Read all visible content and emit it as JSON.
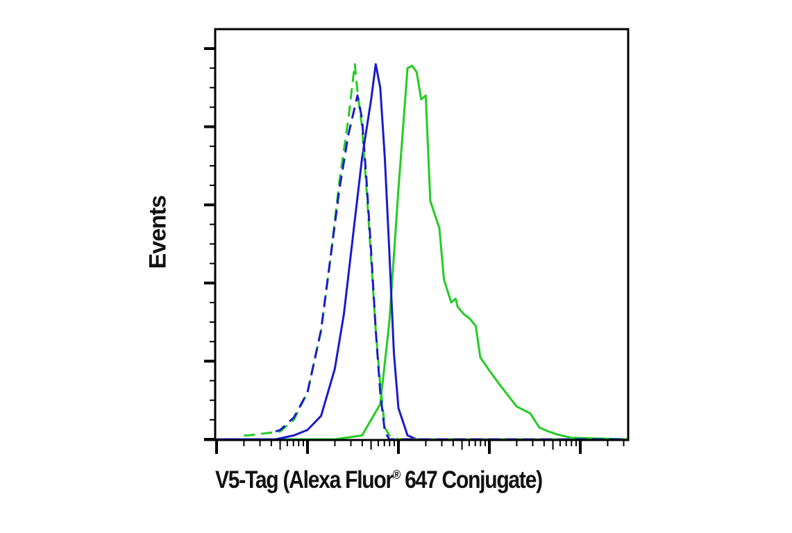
{
  "chart_data": {
    "type": "line",
    "title": "",
    "xlabel": "V5-Tag (Alexa Fluor® 647 Conjugate)",
    "ylabel": "Events",
    "x_scale": "log",
    "x_tick_labels": [],
    "y_tick_labels": [],
    "x_major_ticks_decades": [
      0,
      1,
      2,
      3,
      4
    ],
    "xlim_decades": [
      0,
      4.52
    ],
    "ylim": [
      0,
      5
    ],
    "grid": false,
    "legend": null,
    "series": [
      {
        "name": "green-solid",
        "color": "#22cc22",
        "style": "solid",
        "x": [
          0,
          1.3,
          1.6,
          1.8,
          1.9,
          2.0,
          2.1,
          2.15,
          2.2,
          2.25,
          2.3,
          2.35,
          2.45,
          2.5,
          2.58,
          2.63,
          2.65,
          2.72,
          2.78,
          2.85,
          2.9,
          3.0,
          3.1,
          3.2,
          3.3,
          3.45,
          3.55,
          3.65,
          3.75,
          3.9,
          4.52
        ],
        "y": [
          0,
          0,
          0.05,
          0.45,
          1.5,
          3.2,
          4.75,
          4.78,
          4.7,
          4.35,
          4.4,
          3.05,
          2.7,
          2.05,
          1.75,
          1.8,
          1.7,
          1.6,
          1.55,
          1.45,
          1.05,
          0.88,
          0.72,
          0.57,
          0.42,
          0.33,
          0.15,
          0.1,
          0.06,
          0.02,
          0
        ]
      },
      {
        "name": "blue-solid",
        "color": "#1a1acc",
        "style": "solid",
        "x": [
          0,
          0.65,
          0.85,
          1.0,
          1.15,
          1.3,
          1.4,
          1.5,
          1.6,
          1.7,
          1.75,
          1.8,
          1.85,
          1.9,
          1.95,
          2.0,
          2.1,
          2.2,
          4.52
        ],
        "y": [
          0,
          0,
          0.05,
          0.12,
          0.3,
          0.9,
          1.6,
          2.6,
          3.6,
          4.35,
          4.8,
          4.5,
          3.6,
          2.4,
          1.1,
          0.4,
          0.05,
          0,
          0
        ]
      },
      {
        "name": "green-dashed",
        "color": "#22cc22",
        "style": "dashed",
        "x": [
          0.3,
          0.35,
          0.7,
          0.85,
          1.0,
          1.15,
          1.25,
          1.35,
          1.45,
          1.52,
          1.55,
          1.6,
          1.65,
          1.7,
          1.75,
          1.8,
          1.85,
          1.9,
          2.0,
          4.52
        ],
        "y": [
          0.05,
          0.05,
          0.1,
          0.25,
          0.6,
          1.4,
          2.3,
          3.3,
          4.1,
          4.8,
          4.45,
          4.0,
          3.2,
          2.3,
          1.4,
          0.7,
          0.15,
          0.05,
          0,
          0
        ]
      },
      {
        "name": "blue-dashed",
        "color": "#1a1acc",
        "style": "dashed",
        "x": [
          0.65,
          0.7,
          0.85,
          1.0,
          1.15,
          1.25,
          1.35,
          1.45,
          1.55,
          1.6,
          1.65,
          1.7,
          1.75,
          1.8,
          1.85,
          1.9,
          2.0,
          4.52
        ],
        "y": [
          0.1,
          0.12,
          0.28,
          0.6,
          1.4,
          2.3,
          3.2,
          3.9,
          4.4,
          4.1,
          3.3,
          2.4,
          1.4,
          0.6,
          0.1,
          0,
          0,
          0
        ]
      }
    ]
  },
  "axes": {
    "xlabel": "V5-Tag (Alexa Fluor",
    "xlabel_mark": "®",
    "xlabel_rest": " 647 Conjugate)",
    "ylabel": "Events"
  }
}
